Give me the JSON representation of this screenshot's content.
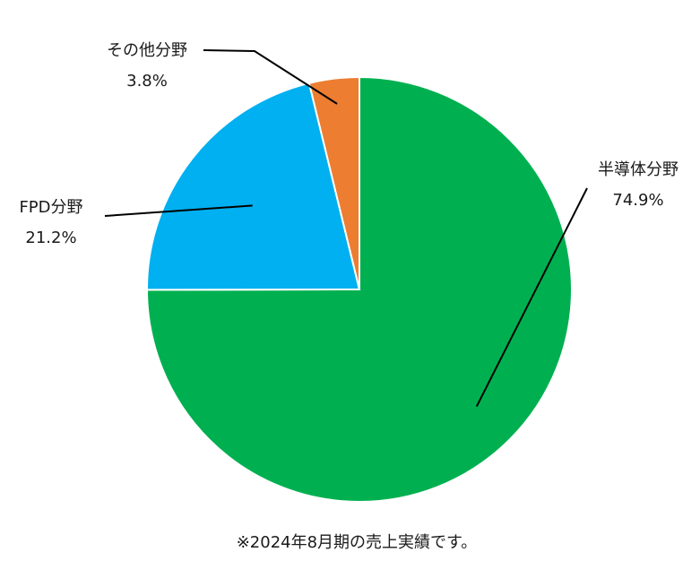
{
  "chart_data": {
    "type": "pie",
    "start_angle_deg": 0,
    "direction": "clockwise",
    "slices": [
      {
        "name": "半導体分野",
        "value": 74.9,
        "value_label": "74.9%",
        "color": "#00b050"
      },
      {
        "name": "FPD分野",
        "value": 21.2,
        "value_label": "21.2%",
        "color": "#00b0f0"
      },
      {
        "name": "その他分野",
        "value": 3.8,
        "value_label": "3.8%",
        "color": "#ed7d31"
      }
    ],
    "slice_border_color": "#ffffff",
    "leader_line_color": "#000000"
  },
  "footnote": "※2024年8月期の売上実績です。"
}
